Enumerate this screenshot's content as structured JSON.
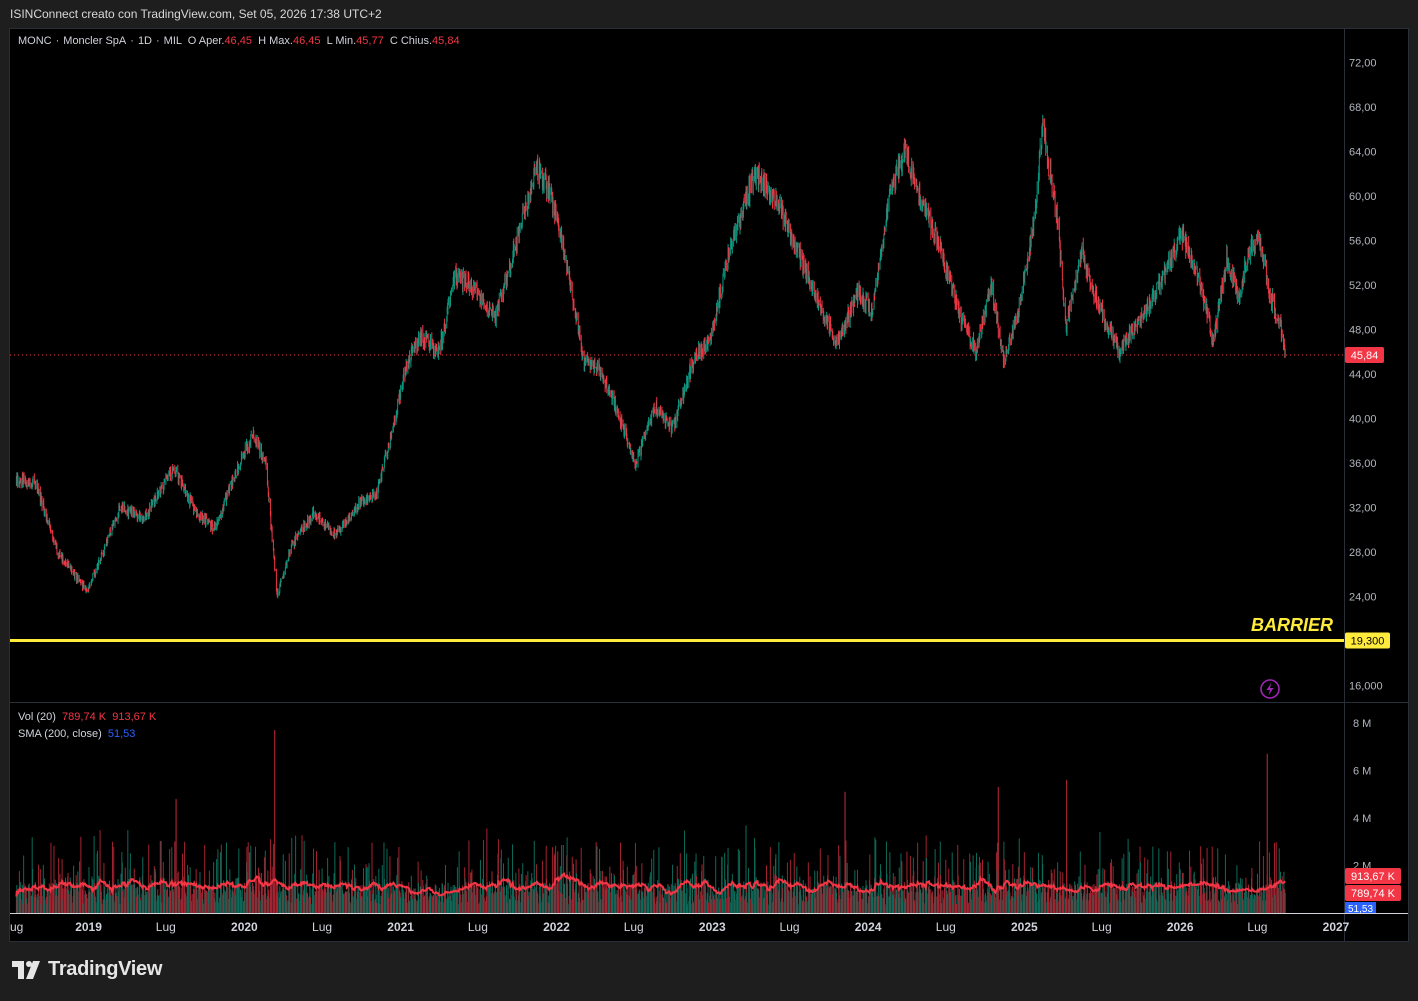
{
  "header": {
    "title": "ISINConnect creato con TradingView.com, Set 05, 2026 17:38 UTC+2"
  },
  "legend": {
    "symbol": "MONC",
    "name": "Moncler SpA",
    "interval": "1D",
    "exchange": "MIL",
    "open_label": "O",
    "open_text": "Aper.",
    "open_value": "46,45",
    "high_label": "H",
    "high_text": "Max.",
    "high_value": "46,45",
    "low_label": "L",
    "low_text": "Min.",
    "low_value": "45,77",
    "close_label": "C",
    "close_text": "Chius.",
    "close_value": "45,84"
  },
  "volume_legend": {
    "vol_label": "Vol (20)",
    "vol_value1": "789,74 K",
    "vol_value2": "913,67 K",
    "sma_label": "SMA (200, close)",
    "sma_value": "51,53"
  },
  "footer": {
    "brand": "TradingView"
  },
  "colors": {
    "up": "#089981",
    "down": "#f23645",
    "barrier": "#ffeb3b",
    "volume_ma": "#f23645",
    "sma": "#2962ff",
    "lightning": "#9c27b0"
  },
  "chart_data": [
    {
      "type": "candlestick",
      "symbol": "MONC",
      "x_range": [
        "2018-07",
        "2027-01"
      ],
      "x_tick_labels": [
        "ug",
        "2019",
        "Lug",
        "2020",
        "Lug",
        "2021",
        "Lug",
        "2022",
        "Lug",
        "2023",
        "Lug",
        "2024",
        "Lug",
        "2025",
        "Lug",
        "2026",
        "Lug",
        "2027"
      ],
      "y_tick_labels": [
        "72,00",
        "68,00",
        "64,00",
        "60,00",
        "56,00",
        "52,00",
        "48,00",
        "44,00",
        "40,00",
        "36,00",
        "32,00",
        "28,00",
        "24,00",
        "20,000",
        "16,000"
      ],
      "ylim": [
        14.5,
        75.0
      ],
      "approx_close_path": [
        {
          "date": "2018-07-15",
          "close": 34.5
        },
        {
          "date": "2018-09-01",
          "close": 34.0
        },
        {
          "date": "2018-10-20",
          "close": 28.0
        },
        {
          "date": "2018-12-27",
          "close": 24.5
        },
        {
          "date": "2019-01-25",
          "close": 27.0
        },
        {
          "date": "2019-03-15",
          "close": 32.0
        },
        {
          "date": "2019-05-10",
          "close": 31.0
        },
        {
          "date": "2019-07-20",
          "close": 35.5
        },
        {
          "date": "2019-09-10",
          "close": 31.5
        },
        {
          "date": "2019-10-25",
          "close": 30.0
        },
        {
          "date": "2019-12-10",
          "close": 35.0
        },
        {
          "date": "2020-01-20",
          "close": 38.5
        },
        {
          "date": "2020-02-20",
          "close": 36.0
        },
        {
          "date": "2020-03-18",
          "close": 24.0
        },
        {
          "date": "2020-04-20",
          "close": 28.5
        },
        {
          "date": "2020-06-10",
          "close": 31.5
        },
        {
          "date": "2020-08-01",
          "close": 29.5
        },
        {
          "date": "2020-10-01",
          "close": 32.5
        },
        {
          "date": "2020-11-05",
          "close": 33.0
        },
        {
          "date": "2020-12-10",
          "close": 38.5
        },
        {
          "date": "2021-01-15",
          "close": 45.0
        },
        {
          "date": "2021-02-20",
          "close": 47.5
        },
        {
          "date": "2021-04-01",
          "close": 46.0
        },
        {
          "date": "2021-05-10",
          "close": 53.0
        },
        {
          "date": "2021-06-25",
          "close": 51.5
        },
        {
          "date": "2021-08-10",
          "close": 49.0
        },
        {
          "date": "2021-10-01",
          "close": 56.0
        },
        {
          "date": "2021-11-15",
          "close": 62.5
        },
        {
          "date": "2021-12-20",
          "close": 60.0
        },
        {
          "date": "2022-01-25",
          "close": 54.0
        },
        {
          "date": "2022-03-07",
          "close": 45.0
        },
        {
          "date": "2022-04-10",
          "close": 44.5
        },
        {
          "date": "2022-05-20",
          "close": 41.0
        },
        {
          "date": "2022-07-05",
          "close": 36.0
        },
        {
          "date": "2022-08-20",
          "close": 41.0
        },
        {
          "date": "2022-10-01",
          "close": 39.0
        },
        {
          "date": "2022-11-15",
          "close": 45.0
        },
        {
          "date": "2022-12-30",
          "close": 47.5
        },
        {
          "date": "2023-02-10",
          "close": 55.0
        },
        {
          "date": "2023-04-10",
          "close": 62.0
        },
        {
          "date": "2023-06-01",
          "close": 59.5
        },
        {
          "date": "2023-07-20",
          "close": 55.0
        },
        {
          "date": "2023-09-01",
          "close": 51.0
        },
        {
          "date": "2023-10-20",
          "close": 46.5
        },
        {
          "date": "2023-12-10",
          "close": 51.5
        },
        {
          "date": "2024-01-10",
          "close": 49.5
        },
        {
          "date": "2024-02-20",
          "close": 60.0
        },
        {
          "date": "2024-03-26",
          "close": 64.0
        },
        {
          "date": "2024-05-01",
          "close": 60.0
        },
        {
          "date": "2024-06-20",
          "close": 55.0
        },
        {
          "date": "2024-08-05",
          "close": 49.0
        },
        {
          "date": "2024-09-10",
          "close": 46.0
        },
        {
          "date": "2024-10-15",
          "close": 52.0
        },
        {
          "date": "2024-11-15",
          "close": 45.0
        },
        {
          "date": "2024-12-20",
          "close": 50.0
        },
        {
          "date": "2025-01-25",
          "close": 58.0
        },
        {
          "date": "2025-02-12",
          "close": 66.0
        },
        {
          "date": "2025-03-20",
          "close": 58.0
        },
        {
          "date": "2025-04-08",
          "close": 48.0
        },
        {
          "date": "2025-05-15",
          "close": 55.0
        },
        {
          "date": "2025-06-20",
          "close": 50.5
        },
        {
          "date": "2025-08-10",
          "close": 46.0
        },
        {
          "date": "2025-09-15",
          "close": 48.0
        },
        {
          "date": "2025-11-01",
          "close": 51.0
        },
        {
          "date": "2026-01-05",
          "close": 56.5
        },
        {
          "date": "2026-02-10",
          "close": 53.0
        },
        {
          "date": "2026-03-20",
          "close": 47.0
        },
        {
          "date": "2026-04-20",
          "close": 54.5
        },
        {
          "date": "2026-05-20",
          "close": 51.0
        },
        {
          "date": "2026-06-10",
          "close": 55.0
        },
        {
          "date": "2026-07-05",
          "close": 56.0
        },
        {
          "date": "2026-08-01",
          "close": 51.0
        },
        {
          "date": "2026-08-25",
          "close": 48.0
        },
        {
          "date": "2026-09-05",
          "close": 45.84
        }
      ],
      "last_price": 45.84,
      "last_price_label": "45,84",
      "barrier": {
        "value": 19.3,
        "label": "BARRIER",
        "price_label": "19,300"
      }
    },
    {
      "type": "bar",
      "name": "Vol (20)",
      "y_tick_labels": [
        "8 M",
        "6 M",
        "4 M",
        "2 M"
      ],
      "ylim": [
        0,
        8500000
      ],
      "last_values": {
        "volume": 913670,
        "volume_ma": 789740,
        "sma_200": 51.53
      },
      "badges": [
        "913,67 K",
        "789,74 K",
        "51,53"
      ],
      "spikes": [
        {
          "date": "2020-03-12",
          "value": 7.7
        },
        {
          "date": "2026-07-24",
          "value": 6.7
        },
        {
          "date": "2025-04-10",
          "value": 5.6
        },
        {
          "date": "2024-11-01",
          "value": 5.3
        },
        {
          "date": "2019-07-25",
          "value": 4.8
        },
        {
          "date": "2023-11-08",
          "value": 5.1
        }
      ],
      "spike_units": "M"
    }
  ]
}
